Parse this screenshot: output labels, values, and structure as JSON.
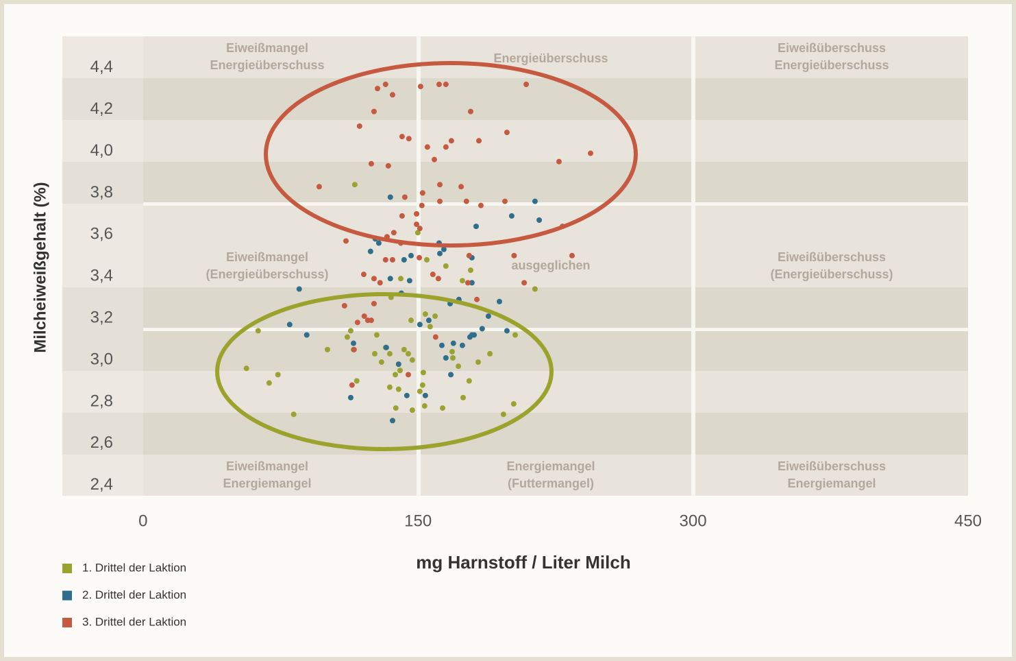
{
  "chart_data": {
    "type": "scatter",
    "xlabel": "mg Harnstoff / Liter Milch",
    "ylabel": "Milcheiweißgehalt  (%)",
    "xlim": [
      -44,
      450
    ],
    "ylim": [
      2.35,
      4.55
    ],
    "xticks": [
      0,
      150,
      300,
      450
    ],
    "yticks": [
      {
        "value": 4.4,
        "label": "4,4"
      },
      {
        "value": 4.2,
        "label": "4,2"
      },
      {
        "value": 4.0,
        "label": "4,0"
      },
      {
        "value": 3.8,
        "label": "3,8"
      },
      {
        "value": 3.6,
        "label": "3,6"
      },
      {
        "value": 3.4,
        "label": "3,4"
      },
      {
        "value": 3.2,
        "label": "3,2"
      },
      {
        "value": 3.0,
        "label": "3,0"
      },
      {
        "value": 2.8,
        "label": "2,8"
      },
      {
        "value": 2.6,
        "label": "2,6"
      },
      {
        "value": 2.4,
        "label": "2,4"
      }
    ],
    "zones": [
      [
        "Eiweißmangel",
        "Energieüberschuss"
      ],
      [
        "Energieüberschuss"
      ],
      [
        "Eiweißüberschuss",
        "Energieüberschuss"
      ],
      [
        "Eiweißmangel",
        "(Energieüberschuss)"
      ],
      [
        "ausgeglichen"
      ],
      [
        "Eiweißüberschuss",
        "(Energieüberschuss)"
      ],
      [
        "Eiweißmangel",
        "Energiemangel"
      ],
      [
        "Energiemangel",
        "(Futtermangel)"
      ],
      [
        "Eiweißüberschuss",
        "Energiemangel"
      ]
    ],
    "series": [
      {
        "name": "1. Drittel der Laktion",
        "color": "#9aa232",
        "x": [
          115.5,
          149.9,
          124.1,
          154.8,
          165.2,
          178.7,
          174.2,
          213.8,
          135.3,
          140.6,
          146.2,
          154.0,
          159.3,
          156.6,
          113.3,
          111.4,
          127.5,
          62.8,
          100.6,
          114.8,
          132.3,
          142.4,
          126.4,
          134.6,
          144.7,
          146.9,
          130.1,
          168.6,
          169.0,
          172.0,
          189.2,
          182.8,
          203.0,
          56.4,
          73.6,
          68.8,
          116.6,
          140.2,
          137.6,
          152.9,
          152.5,
          177.9,
          134.6,
          139.4,
          151.0,
          174.6,
          137.9,
          153.6,
          146.9,
          163.4,
          202.2,
          196.6,
          82.2
        ],
        "y": [
          3.84,
          3.61,
          3.52,
          3.48,
          3.45,
          3.43,
          3.38,
          3.34,
          3.3,
          3.39,
          3.19,
          3.22,
          3.21,
          3.16,
          3.14,
          3.11,
          3.12,
          3.14,
          3.05,
          3.05,
          3.06,
          3.05,
          3.03,
          3.03,
          3.03,
          3.0,
          2.99,
          3.04,
          3.01,
          2.97,
          3.03,
          2.99,
          3.12,
          2.96,
          2.93,
          2.89,
          2.9,
          2.95,
          2.93,
          2.94,
          2.88,
          2.9,
          2.87,
          2.86,
          2.85,
          2.82,
          2.77,
          2.78,
          2.76,
          2.77,
          2.79,
          2.74,
          2.74
        ]
      },
      {
        "name": "2. Drittel der Laktion",
        "color": "#2f6e8c",
        "x": [
          134.9,
          213.8,
          201.1,
          216.1,
          181.7,
          128.6,
          126.7,
          161.5,
          164.1,
          161.9,
          146.2,
          142.4,
          134.9,
          145.4,
          140.9,
          179.4,
          179.4,
          85.2,
          124.1,
          172.3,
          167.5,
          194.4,
          188.4,
          155.9,
          151.0,
          80.0,
          89.3,
          185.0,
          198.5,
          180.6,
          178.3,
          114.8,
          132.7,
          163.0,
          169.3,
          174.2,
          179.4,
          165.2,
          139.4,
          167.9,
          113.3,
          143.9,
          154.0,
          136.1
        ],
        "y": [
          3.78,
          3.76,
          3.69,
          3.67,
          3.64,
          3.56,
          3.58,
          3.56,
          3.53,
          3.51,
          3.5,
          3.48,
          3.39,
          3.38,
          3.32,
          3.49,
          3.37,
          3.34,
          3.52,
          3.29,
          3.27,
          3.28,
          3.21,
          3.19,
          3.17,
          3.17,
          3.12,
          3.15,
          3.14,
          3.12,
          3.11,
          3.08,
          3.06,
          3.07,
          3.08,
          3.07,
          3.12,
          3.01,
          2.98,
          2.93,
          2.82,
          2.83,
          2.83,
          2.71
        ]
      },
      {
        "name": "3. Drittel der Laktion",
        "color": "#c65a40",
        "x": [
          132.3,
          127.9,
          136.1,
          151.4,
          161.5,
          165.2,
          209.0,
          126.0,
          178.7,
          118.1,
          141.3,
          145.0,
          198.5,
          168.2,
          155.1,
          165.2,
          183.2,
          244.1,
          158.9,
          124.5,
          133.8,
          226.9,
          96.1,
          161.9,
          173.5,
          152.5,
          142.8,
          161.9,
          176.4,
          197.4,
          152.1,
          184.3,
          149.2,
          141.3,
          149.2,
          136.8,
          133.1,
          110.7,
          140.6,
          234.0,
          202.4,
          177.9,
          150.7,
          132.3,
          136.1,
          158.1,
          161.1,
          120.4,
          126.0,
          129.3,
          207.9,
          177.2,
          182.1,
          126.0,
          109.9,
          120.7,
          122.6,
          124.5,
          117.0,
          159.6,
          115.1,
          144.7,
          114.0,
          228.8,
          151.0
        ],
        "y": [
          4.32,
          4.3,
          4.27,
          4.31,
          4.32,
          4.32,
          4.32,
          4.19,
          4.19,
          4.12,
          4.07,
          4.06,
          4.09,
          4.05,
          4.02,
          4.02,
          4.05,
          3.99,
          3.96,
          3.94,
          3.93,
          3.95,
          3.83,
          3.84,
          3.83,
          3.8,
          3.78,
          3.76,
          3.76,
          3.76,
          3.74,
          3.74,
          3.7,
          3.69,
          3.65,
          3.61,
          3.59,
          3.57,
          3.56,
          3.5,
          3.5,
          3.5,
          3.49,
          3.48,
          3.48,
          3.41,
          3.39,
          3.41,
          3.39,
          3.37,
          3.37,
          3.37,
          3.29,
          3.27,
          3.26,
          3.21,
          3.19,
          3.19,
          3.18,
          3.11,
          3.05,
          2.93,
          2.88,
          3.64,
          3.63
        ]
      }
    ]
  }
}
